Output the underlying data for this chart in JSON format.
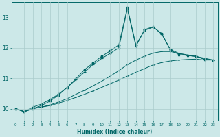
{
  "xlabel": "Humidex (Indice chaleur)",
  "bg_color": "#cce8e8",
  "line_color": "#006666",
  "grid_color": "#aacccc",
  "xlim": [
    -0.5,
    23.5
  ],
  "ylim": [
    9.6,
    13.5
  ],
  "yticks": [
    10,
    11,
    12,
    13
  ],
  "xticks": [
    0,
    1,
    2,
    3,
    4,
    5,
    6,
    7,
    8,
    9,
    10,
    11,
    12,
    13,
    14,
    15,
    16,
    17,
    18,
    19,
    20,
    21,
    22,
    23
  ],
  "line1_x": [
    0,
    1,
    2,
    3,
    4,
    5,
    6,
    7,
    8,
    9,
    10,
    11,
    12,
    13,
    14,
    15,
    16,
    17,
    18,
    19,
    20,
    21,
    22,
    23
  ],
  "line1_y": [
    10.0,
    9.9,
    10.0,
    10.05,
    10.1,
    10.18,
    10.27,
    10.37,
    10.47,
    10.58,
    10.7,
    10.82,
    10.94,
    11.07,
    11.2,
    11.32,
    11.44,
    11.52,
    11.57,
    11.6,
    11.62,
    11.63,
    11.6,
    11.6
  ],
  "line2_x": [
    0,
    1,
    2,
    3,
    4,
    5,
    6,
    7,
    8,
    9,
    10,
    11,
    12,
    13,
    14,
    15,
    16,
    17,
    18,
    19,
    20,
    21,
    22,
    23
  ],
  "line2_y": [
    10.0,
    9.9,
    10.0,
    10.05,
    10.12,
    10.22,
    10.33,
    10.47,
    10.6,
    10.75,
    10.9,
    11.07,
    11.25,
    11.45,
    11.6,
    11.73,
    11.83,
    11.88,
    11.88,
    11.82,
    11.77,
    11.72,
    11.66,
    11.6
  ],
  "line3_x": [
    0,
    1,
    2,
    3,
    4,
    5,
    6,
    7,
    8,
    9,
    10,
    11,
    12,
    13,
    14,
    15,
    16,
    17,
    18,
    19,
    20,
    21,
    22,
    23
  ],
  "line3_y": [
    10.0,
    9.9,
    10.05,
    10.15,
    10.3,
    10.48,
    10.7,
    10.95,
    11.2,
    11.45,
    11.65,
    11.82,
    12.0,
    13.28,
    12.05,
    12.6,
    12.7,
    12.45,
    11.95,
    11.82,
    11.75,
    11.72,
    11.63,
    11.6
  ],
  "line4_x": [
    0,
    1,
    2,
    3,
    4,
    5,
    6,
    7,
    8,
    9,
    10,
    11,
    12,
    13,
    14,
    15,
    16,
    17,
    18,
    19,
    20,
    21,
    22,
    23
  ],
  "line4_y": [
    10.0,
    9.9,
    10.0,
    10.1,
    10.25,
    10.45,
    10.7,
    10.98,
    11.28,
    11.5,
    11.72,
    11.9,
    12.1,
    13.32,
    12.1,
    12.58,
    12.68,
    12.48,
    11.93,
    11.78,
    11.75,
    11.72,
    11.62,
    11.6
  ]
}
